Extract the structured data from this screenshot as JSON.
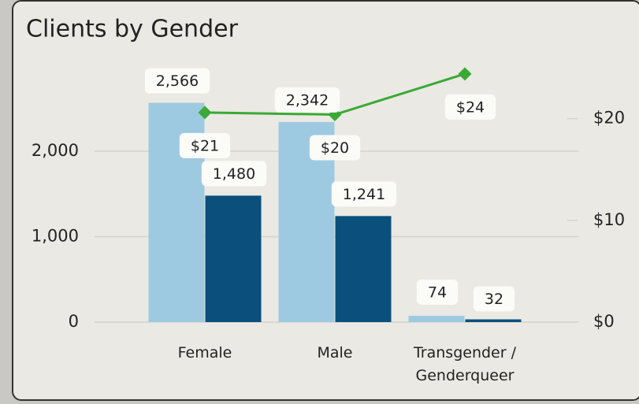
{
  "chart_data": {
    "type": "bar",
    "title": "Clients by Gender",
    "categories": [
      "Female",
      "Male",
      "Transgender / Genderqueer"
    ],
    "series": [
      {
        "color": "#9ecae1",
        "values": [
          2566,
          2342,
          74
        ],
        "value_labels": [
          "2,566",
          "2,342",
          "74"
        ]
      },
      {
        "color": "#0b4f7c",
        "values": [
          1480,
          1241,
          32
        ],
        "value_labels": [
          "1,480",
          "1,241",
          "32"
        ]
      },
      {
        "type": "line",
        "axis": "y2",
        "color": "#3aa935",
        "values": [
          20.6,
          20.4,
          24.4
        ],
        "value_labels": [
          "$21",
          "$20",
          "$24"
        ]
      }
    ],
    "ylim": [
      0,
      3000
    ],
    "yticks": [
      0,
      {
        "value": 1000,
        "label": "1,000"
      },
      {
        "value": 2000,
        "label": "2,000"
      }
    ],
    "y2lim": [
      0,
      25.2
    ],
    "y2ticks": [
      {
        "value": 0,
        "label": "$0"
      },
      {
        "value": 10,
        "label": "$10"
      },
      {
        "value": 20,
        "label": "$20"
      }
    ],
    "grid": true
  }
}
